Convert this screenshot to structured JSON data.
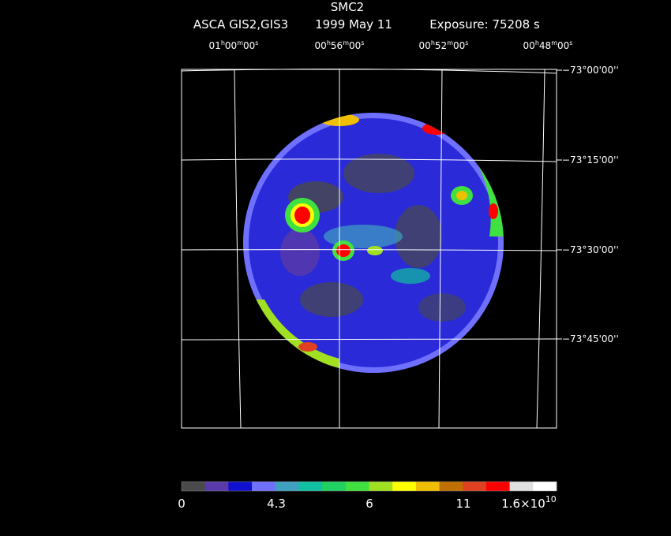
{
  "header": {
    "title": "SMC2",
    "instrument": "ASCA GIS2,GIS3",
    "date": "1999 May 11",
    "exposure": "Exposure: 75208 s"
  },
  "ra_labels": [
    [
      "01",
      "h",
      "00",
      "m",
      "00",
      "s"
    ],
    [
      "00",
      "h",
      "56",
      "m",
      "00",
      "s"
    ],
    [
      "00",
      "h",
      "52",
      "m",
      "00",
      "s"
    ],
    [
      "00",
      "h",
      "48",
      "m",
      "00",
      "s"
    ]
  ],
  "dec_labels": [
    "−73°00'00''",
    "−73°15'00''",
    "−73°30'00''",
    "−73°45'00''"
  ],
  "colorbar": {
    "colors": [
      "#4a4a4a",
      "#5a3aa8",
      "#1010d0",
      "#7070ff",
      "#40a0c0",
      "#10c0a0",
      "#20d060",
      "#40e040",
      "#a0e020",
      "#ffff00",
      "#f0c000",
      "#c07000",
      "#e04020",
      "#ff0000",
      "#e0e0e0",
      "#ffffff"
    ],
    "labels": [
      "0",
      "4.3",
      "6",
      "11"
    ],
    "last_label": {
      "base": "1.6×10",
      "exp": "10"
    }
  }
}
